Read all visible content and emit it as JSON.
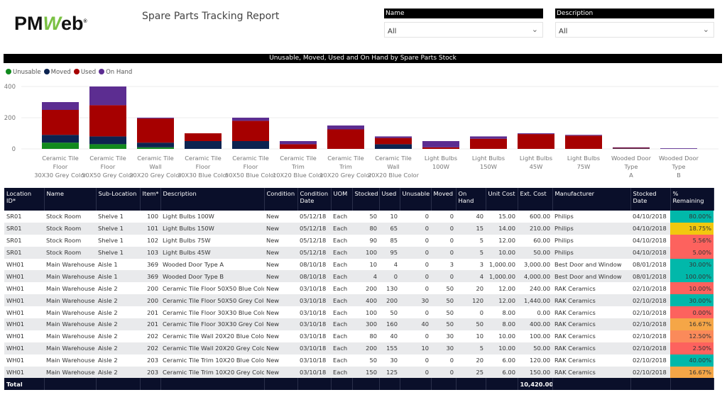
{
  "header": {
    "logo": "PMWeb",
    "title": "Spare Parts Tracking Report"
  },
  "filters": [
    {
      "label": "Name",
      "value": "All"
    },
    {
      "label": "Description",
      "value": "All"
    }
  ],
  "chart_data": {
    "type": "bar",
    "stacked": true,
    "title": "Unusable, Moved, Used and On Hand by Spare Parts Stock",
    "ylim": [
      0,
      400
    ],
    "yticks": [
      0,
      200,
      400
    ],
    "grid": true,
    "legend": "top-left",
    "categories": [
      "Ceramic Tile Floor 30X30 Grey Color",
      "Ceramic Tile Floor 50X50 Grey Color",
      "Ceramic Tile Wall 20X20 Grey Color",
      "Ceramic Tile Floor 30X30 Blue Color",
      "Ceramic Tile Floor 50X50 Blue Color",
      "Ceramic Tile Trim 10X20 Blue Color",
      "Ceramic Tile Trim 10X20 Grey Color",
      "Ceramic Tile Wall 20X20 Blue Color",
      "Light Bulbs 100W",
      "Light Bulbs 150W",
      "Light Bulbs 45W",
      "Light Bulbs 75W",
      "Wooded Door Type A",
      "Wooded Door Type B"
    ],
    "series": [
      {
        "name": "Unusable",
        "color": "#118a1e",
        "values": [
          40,
          30,
          10,
          0,
          0,
          0,
          0,
          0,
          0,
          0,
          0,
          0,
          0,
          0
        ]
      },
      {
        "name": "Moved",
        "color": "#0c2350",
        "values": [
          50,
          50,
          30,
          50,
          50,
          0,
          0,
          30,
          0,
          0,
          0,
          0,
          3,
          0
        ]
      },
      {
        "name": "Used",
        "color": "#a60000",
        "values": [
          160,
          200,
          155,
          50,
          130,
          30,
          125,
          40,
          10,
          65,
          95,
          85,
          4,
          0
        ]
      },
      {
        "name": "On Hand",
        "color": "#5c2d91",
        "values": [
          50,
          120,
          5,
          0,
          20,
          20,
          25,
          10,
          40,
          15,
          5,
          5,
          3,
          4
        ]
      }
    ]
  },
  "table": {
    "columns": [
      "Location ID*",
      "Name",
      "Sub-Location",
      "Item*",
      "Description",
      "Condition",
      "Condition Date",
      "UOM",
      "Stocked",
      "Used",
      "Unusable",
      "Moved",
      "On Hand",
      "Unit Cost",
      "Ext. Cost",
      "Manufacturer",
      "Stocked Date",
      "% Remaining"
    ],
    "rows": [
      [
        "SR01",
        "Stock Room",
        "Shelve 1",
        "100",
        "Light Bulbs 100W",
        "New",
        "05/12/18",
        "Each",
        "50",
        "10",
        "0",
        "0",
        "40",
        "15.00",
        "600.00",
        "Philips",
        "04/10/2018",
        "80.00%"
      ],
      [
        "SR01",
        "Stock Room",
        "Shelve 1",
        "101",
        "Light Bulbs 150W",
        "New",
        "05/12/18",
        "Each",
        "80",
        "65",
        "0",
        "0",
        "15",
        "14.00",
        "210.00",
        "Philips",
        "04/10/2018",
        "18.75%"
      ],
      [
        "SR01",
        "Stock Room",
        "Shelve 1",
        "102",
        "Light Bulbs 75W",
        "New",
        "05/12/18",
        "Each",
        "90",
        "85",
        "0",
        "0",
        "5",
        "12.00",
        "60.00",
        "Philips",
        "04/10/2018",
        "5.56%"
      ],
      [
        "SR01",
        "Stock Room",
        "Shelve 1",
        "103",
        "Light Bulbs 45W",
        "New",
        "05/12/18",
        "Each",
        "100",
        "95",
        "0",
        "0",
        "5",
        "10.00",
        "50.00",
        "Philips",
        "04/10/2018",
        "5.00%"
      ],
      [
        "WH01",
        "Main Warehouse",
        "Aisle 1",
        "369",
        "Wooded Door Type A",
        "New",
        "08/10/18",
        "Each",
        "10",
        "4",
        "0",
        "3",
        "3",
        "1,000.00",
        "3,000.00",
        "Best Door and Window",
        "08/01/2018",
        "30.00%"
      ],
      [
        "WH01",
        "Main Warehouse",
        "Aisle 1",
        "369",
        "Wooded Door Type B",
        "New",
        "08/10/18",
        "Each",
        "4",
        "0",
        "0",
        "0",
        "4",
        "1,000.00",
        "4,000.00",
        "Best Door and Window",
        "08/01/2018",
        "100.00%"
      ],
      [
        "WH01",
        "Main Warehouse",
        "Aisle 2",
        "200",
        "Ceramic Tile Floor 50X50 Blue Color",
        "New",
        "03/10/18",
        "Each",
        "200",
        "130",
        "0",
        "50",
        "20",
        "12.00",
        "240.00",
        "RAK Ceramics",
        "02/10/2018",
        "10.00%"
      ],
      [
        "WH01",
        "Main Warehouse",
        "Aisle 2",
        "200",
        "Ceramic Tile Floor 50X50 Grey Color",
        "New",
        "03/10/18",
        "Each",
        "400",
        "200",
        "30",
        "50",
        "120",
        "12.00",
        "1,440.00",
        "RAK Ceramics",
        "02/10/2018",
        "30.00%"
      ],
      [
        "WH01",
        "Main Warehouse",
        "Aisle 2",
        "201",
        "Ceramic Tile Floor 30X30 Blue Color",
        "New",
        "03/10/18",
        "Each",
        "100",
        "50",
        "0",
        "50",
        "0",
        "8.00",
        "0.00",
        "RAK Ceramics",
        "02/10/2018",
        "0.00%"
      ],
      [
        "WH01",
        "Main Warehouse",
        "Aisle 2",
        "201",
        "Ceramic Tile Floor 30X30 Grey Color",
        "New",
        "03/10/18",
        "Each",
        "300",
        "160",
        "40",
        "50",
        "50",
        "8.00",
        "400.00",
        "RAK Ceramics",
        "02/10/2018",
        "16.67%"
      ],
      [
        "WH01",
        "Main Warehouse",
        "Aisle 2",
        "202",
        "Ceramic Tile Wall 20X20 Blue Color",
        "New",
        "03/10/18",
        "Each",
        "80",
        "40",
        "0",
        "30",
        "10",
        "10.00",
        "100.00",
        "RAK Ceramics",
        "02/10/2018",
        "12.50%"
      ],
      [
        "WH01",
        "Main Warehouse",
        "Aisle 2",
        "202",
        "Ceramic Tile Wall 20X20 Grey Color",
        "New",
        "03/10/18",
        "Each",
        "200",
        "155",
        "10",
        "30",
        "5",
        "10.00",
        "50.00",
        "RAK Ceramics",
        "02/10/2018",
        "2.50%"
      ],
      [
        "WH01",
        "Main Warehouse",
        "Aisle 2",
        "203",
        "Ceramic Tile Trim 10X20 Blue Color",
        "New",
        "03/10/18",
        "Each",
        "50",
        "30",
        "0",
        "0",
        "20",
        "6.00",
        "120.00",
        "RAK Ceramics",
        "02/10/2018",
        "40.00%"
      ],
      [
        "WH01",
        "Main Warehouse",
        "Aisle 2",
        "203",
        "Ceramic Tile Trim 10X20 Grey Color",
        "New",
        "03/10/18",
        "Each",
        "150",
        "125",
        "0",
        "0",
        "25",
        "6.00",
        "150.00",
        "RAK Ceramics",
        "02/10/2018",
        "16.67%"
      ]
    ],
    "remaining_colors": [
      "#01b8aa",
      "#f2c80f",
      "#fd625e",
      "#fd625e",
      "#01b8aa",
      "#01b8aa",
      "#fd625e",
      "#01b8aa",
      "#fd625e",
      "#f5a647",
      "#fb8a5a",
      "#fd625e",
      "#01b8aa",
      "#f5a647"
    ],
    "total": {
      "label": "Total",
      "ext_cost": "10,420.00"
    }
  }
}
